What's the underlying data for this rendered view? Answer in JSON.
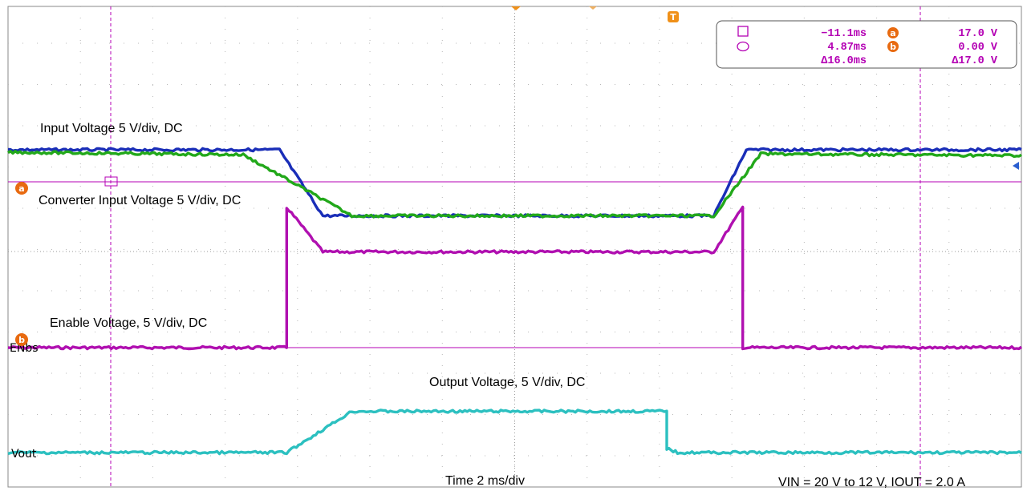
{
  "chart_data": {
    "type": "line",
    "xlabel": "Time 2 ms/div",
    "conditions": "VIN = 20 V to 12 V, IOUT = 2.0 A",
    "grid": true,
    "series": [
      {
        "name": "Input Voltage 5 V/div, DC",
        "color": "#1a2eb8",
        "x": [
          -14.0,
          -6.5,
          -5.3,
          5.5,
          6.4,
          14.0
        ],
        "y": [
          20.0,
          20.0,
          12.0,
          12.0,
          20.0,
          20.0
        ]
      },
      {
        "name": "Converter Input Voltage 5 V/div, DC",
        "color": "#22a81a",
        "x": [
          -14.0,
          -7.5,
          -4.5,
          5.5,
          6.8,
          14.0
        ],
        "y": [
          19.7,
          19.4,
          12.0,
          12.0,
          19.5,
          19.3
        ]
      },
      {
        "name": "Enable Voltage, 5 V/div, DC",
        "color": "#b010b0",
        "x": [
          -14.0,
          -6.3,
          -6.3,
          -5.3,
          5.5,
          6.3,
          6.3,
          14.0
        ],
        "y": [
          0.0,
          0.0,
          17.0,
          11.6,
          11.6,
          17.0,
          0.0,
          0.0
        ]
      },
      {
        "name": "Output Voltage, 5 V/div, DC",
        "color": "#2cc0c0",
        "x": [
          -14.0,
          -6.3,
          -4.5,
          4.2,
          4.2,
          4.5,
          14.0
        ],
        "y": [
          0.0,
          0.0,
          5.0,
          5.0,
          0.5,
          0.0,
          0.0
        ]
      }
    ],
    "channel_labels": [
      "Vout",
      "ENbs"
    ],
    "trigger_marker": "T",
    "cursor_markers": [
      "a",
      "b"
    ],
    "cursors": {
      "t1": "−11.1ms",
      "t2": "4.87ms",
      "dt": "Δ16.0ms",
      "va": "17.0 V",
      "vb": "0.00 V",
      "dv": "Δ17.0 V"
    }
  }
}
